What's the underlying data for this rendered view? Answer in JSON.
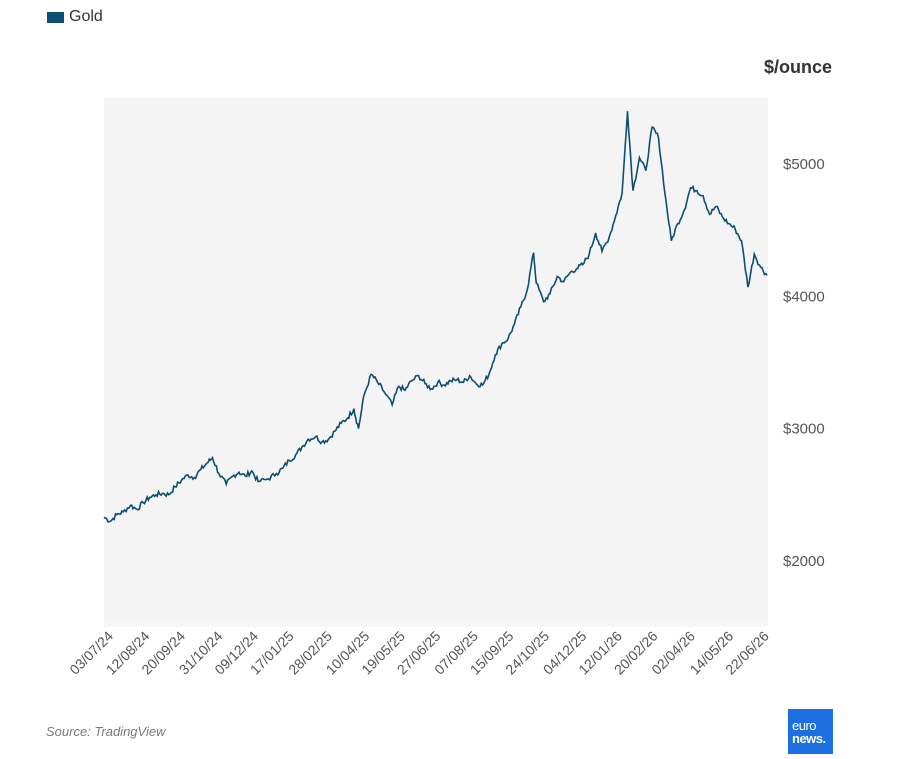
{
  "legend": {
    "label": "Gold"
  },
  "unit_label": "$/ounce",
  "source": "Source: TradingView",
  "logo": {
    "line1": "euro",
    "line2": "news."
  },
  "colors": {
    "line": "#0d4e73",
    "plot_bg": "#f4f4f4",
    "axis_text": "#555555",
    "logo_bg": "#1d6ee0"
  },
  "chart_data": {
    "type": "line",
    "title": "",
    "xlabel": "",
    "ylabel": "$/ounce",
    "ylim": [
      1500,
      5500
    ],
    "yticks": [
      2000,
      3000,
      4000,
      5000
    ],
    "ytick_labels": [
      "$2000",
      "$3000",
      "$4000",
      "$5000"
    ],
    "xlim": [
      "2024-07-03",
      "2026-07-01"
    ],
    "xtick_labels": [
      "03/07/24",
      "12/08/24",
      "20/09/24",
      "31/10/24",
      "09/12/24",
      "17/01/25",
      "28/02/25",
      "10/04/25",
      "19/05/25",
      "27/06/25",
      "07/08/25",
      "15/09/25",
      "24/10/25",
      "04/12/25",
      "12/01/26",
      "20/02/26",
      "02/04/26",
      "14/05/26",
      "22/06/26"
    ],
    "xtick_dates": [
      "2024-07-03",
      "2024-08-12",
      "2024-09-20",
      "2024-10-31",
      "2024-12-09",
      "2025-01-17",
      "2025-02-28",
      "2025-04-10",
      "2025-05-19",
      "2025-06-27",
      "2025-08-07",
      "2025-09-15",
      "2025-10-24",
      "2025-12-04",
      "2026-01-12",
      "2026-02-20",
      "2026-04-02",
      "2026-05-14",
      "2026-06-22"
    ],
    "grid": false,
    "legend_position": "top-left",
    "series": [
      {
        "name": "Gold",
        "x": [
          "2024-07-03",
          "2024-07-10",
          "2024-07-17",
          "2024-07-24",
          "2024-08-01",
          "2024-08-08",
          "2024-08-15",
          "2024-08-22",
          "2024-08-29",
          "2024-09-05",
          "2024-09-12",
          "2024-09-19",
          "2024-09-26",
          "2024-10-03",
          "2024-10-10",
          "2024-10-17",
          "2024-10-24",
          "2024-10-30",
          "2024-11-06",
          "2024-11-14",
          "2024-11-21",
          "2024-11-28",
          "2024-12-05",
          "2024-12-12",
          "2024-12-19",
          "2024-12-30",
          "2025-01-08",
          "2025-01-15",
          "2025-01-22",
          "2025-01-29",
          "2025-02-05",
          "2025-02-12",
          "2025-02-20",
          "2025-02-27",
          "2025-03-06",
          "2025-03-13",
          "2025-03-20",
          "2025-03-27",
          "2025-04-03",
          "2025-04-08",
          "2025-04-14",
          "2025-04-22",
          "2025-04-29",
          "2025-05-06",
          "2025-05-15",
          "2025-05-22",
          "2025-05-29",
          "2025-06-05",
          "2025-06-13",
          "2025-06-20",
          "2025-06-27",
          "2025-07-04",
          "2025-07-11",
          "2025-07-18",
          "2025-07-25",
          "2025-08-01",
          "2025-08-08",
          "2025-08-15",
          "2025-08-22",
          "2025-08-29",
          "2025-09-05",
          "2025-09-12",
          "2025-09-19",
          "2025-09-26",
          "2025-10-03",
          "2025-10-10",
          "2025-10-17",
          "2025-10-20",
          "2025-10-28",
          "2025-11-04",
          "2025-11-12",
          "2025-11-19",
          "2025-11-26",
          "2025-12-03",
          "2025-12-10",
          "2025-12-17",
          "2025-12-24",
          "2025-12-31",
          "2026-01-08",
          "2026-01-15",
          "2026-01-22",
          "2026-01-28",
          "2026-02-03",
          "2026-02-10",
          "2026-02-17",
          "2026-02-24",
          "2026-03-03",
          "2026-03-10",
          "2026-03-17",
          "2026-03-24",
          "2026-03-31",
          "2026-04-07",
          "2026-04-14",
          "2026-04-21",
          "2026-04-28",
          "2026-05-05",
          "2026-05-12",
          "2026-05-19",
          "2026-05-26",
          "2026-06-02",
          "2026-06-09",
          "2026-06-16",
          "2026-06-23",
          "2026-06-30"
        ],
        "values": [
          2330,
          2300,
          2350,
          2370,
          2420,
          2390,
          2440,
          2480,
          2500,
          2510,
          2500,
          2560,
          2610,
          2650,
          2630,
          2690,
          2740,
          2780,
          2660,
          2580,
          2640,
          2670,
          2640,
          2680,
          2600,
          2620,
          2660,
          2700,
          2760,
          2800,
          2860,
          2920,
          2940,
          2900,
          2920,
          2980,
          3040,
          3080,
          3150,
          3000,
          3250,
          3410,
          3350,
          3280,
          3180,
          3320,
          3290,
          3360,
          3400,
          3340,
          3300,
          3350,
          3330,
          3360,
          3370,
          3350,
          3400,
          3340,
          3330,
          3410,
          3560,
          3640,
          3680,
          3790,
          3920,
          4050,
          4330,
          4100,
          3960,
          4020,
          4150,
          4110,
          4180,
          4210,
          4240,
          4320,
          4480,
          4340,
          4450,
          4610,
          4780,
          5400,
          4800,
          5050,
          4950,
          5280,
          5200,
          4780,
          4420,
          4550,
          4650,
          4820,
          4800,
          4760,
          4620,
          4680,
          4600,
          4550,
          4510,
          4420,
          4070,
          4320,
          4220,
          4160
        ]
      }
    ]
  }
}
